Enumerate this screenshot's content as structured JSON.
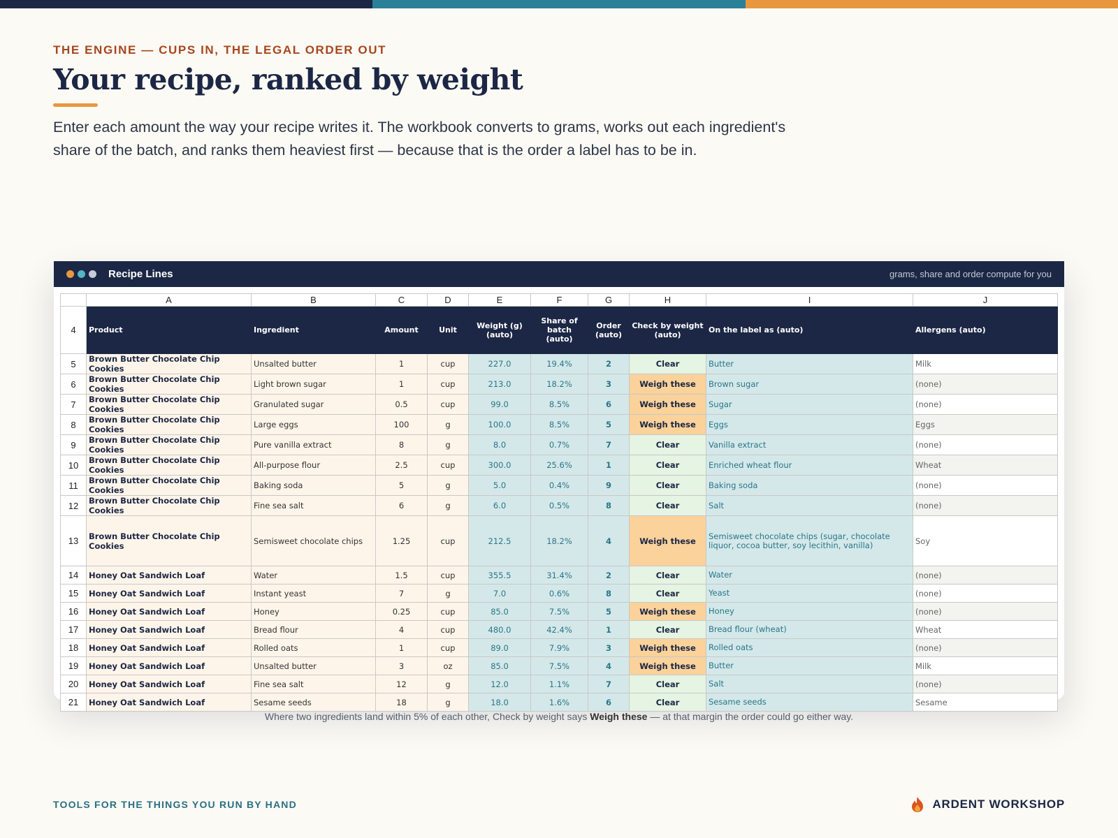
{
  "colors": {
    "navy": "#1c2745",
    "teal": "#2a7688",
    "orange": "#e9973f",
    "rust": "#a8471e",
    "background": "#fbfaf4"
  },
  "top_bar": [
    {
      "color": "#1c2745"
    },
    {
      "color": "#2a8096"
    },
    {
      "color": "#e9973f"
    }
  ],
  "header": {
    "eyebrow": "THE ENGINE — CUPS IN, THE LEGAL ORDER OUT",
    "title": "Your recipe, ranked by weight",
    "intro": "Enter each amount the way your recipe writes it. The workbook converts to grams, works out each ingredient's share of the batch, and ranks them heaviest first — because that is the order a label has to be in."
  },
  "card": {
    "dots": [
      "#e9973f",
      "#53b6c4",
      "#c6ccd8"
    ],
    "title": "Recipe Lines",
    "subtitle": "grams, share and order compute for you"
  },
  "sheet": {
    "column_letters": [
      "A",
      "B",
      "C",
      "D",
      "E",
      "F",
      "G",
      "H",
      "I",
      "J"
    ],
    "header_row_number": "4",
    "headers": [
      "Product",
      "Ingredient",
      "Amount",
      "Unit",
      "Weight (g) (auto)",
      "Share of batch (auto)",
      "Order (auto)",
      "Check by weight (auto)",
      "On the label as (auto)",
      "Allergens (auto)"
    ],
    "rows": [
      {
        "row": "5",
        "product": "Brown Butter Chocolate Chip Cookies",
        "ingredient": "Unsalted butter",
        "amount": "1",
        "unit": "cup",
        "weight": "227.0",
        "share": "19.4%",
        "order": "2",
        "check": "Clear",
        "label": "Butter",
        "allergens": "Milk"
      },
      {
        "row": "6",
        "product": "Brown Butter Chocolate Chip Cookies",
        "ingredient": "Light brown sugar",
        "amount": "1",
        "unit": "cup",
        "weight": "213.0",
        "share": "18.2%",
        "order": "3",
        "check": "Weigh these",
        "label": "Brown sugar",
        "allergens": "(none)"
      },
      {
        "row": "7",
        "product": "Brown Butter Chocolate Chip Cookies",
        "ingredient": "Granulated sugar",
        "amount": "0.5",
        "unit": "cup",
        "weight": "99.0",
        "share": "8.5%",
        "order": "6",
        "check": "Weigh these",
        "label": "Sugar",
        "allergens": "(none)"
      },
      {
        "row": "8",
        "product": "Brown Butter Chocolate Chip Cookies",
        "ingredient": "Large eggs",
        "amount": "100",
        "unit": "g",
        "weight": "100.0",
        "share": "8.5%",
        "order": "5",
        "check": "Weigh these",
        "label": "Eggs",
        "allergens": "Eggs"
      },
      {
        "row": "9",
        "product": "Brown Butter Chocolate Chip Cookies",
        "ingredient": "Pure vanilla extract",
        "amount": "8",
        "unit": "g",
        "weight": "8.0",
        "share": "0.7%",
        "order": "7",
        "check": "Clear",
        "label": "Vanilla extract",
        "allergens": "(none)"
      },
      {
        "row": "10",
        "product": "Brown Butter Chocolate Chip Cookies",
        "ingredient": "All-purpose flour",
        "amount": "2.5",
        "unit": "cup",
        "weight": "300.0",
        "share": "25.6%",
        "order": "1",
        "check": "Clear",
        "label": "Enriched wheat flour",
        "allergens": "Wheat"
      },
      {
        "row": "11",
        "product": "Brown Butter Chocolate Chip Cookies",
        "ingredient": "Baking soda",
        "amount": "5",
        "unit": "g",
        "weight": "5.0",
        "share": "0.4%",
        "order": "9",
        "check": "Clear",
        "label": "Baking soda",
        "allergens": "(none)"
      },
      {
        "row": "12",
        "product": "Brown Butter Chocolate Chip Cookies",
        "ingredient": "Fine sea salt",
        "amount": "6",
        "unit": "g",
        "weight": "6.0",
        "share": "0.5%",
        "order": "8",
        "check": "Clear",
        "label": "Salt",
        "allergens": "(none)"
      },
      {
        "row": "13",
        "product": "Brown Butter Chocolate Chip Cookies",
        "ingredient": "Semisweet chocolate chips",
        "amount": "1.25",
        "unit": "cup",
        "weight": "212.5",
        "share": "18.2%",
        "order": "4",
        "check": "Weigh these",
        "label": "Semisweet chocolate chips (sugar, chocolate liquor, cocoa butter, soy lecithin, vanilla)",
        "allergens": "Soy"
      },
      {
        "row": "14",
        "product": "Honey Oat Sandwich Loaf",
        "ingredient": "Water",
        "amount": "1.5",
        "unit": "cup",
        "weight": "355.5",
        "share": "31.4%",
        "order": "2",
        "check": "Clear",
        "label": "Water",
        "allergens": "(none)"
      },
      {
        "row": "15",
        "product": "Honey Oat Sandwich Loaf",
        "ingredient": "Instant yeast",
        "amount": "7",
        "unit": "g",
        "weight": "7.0",
        "share": "0.6%",
        "order": "8",
        "check": "Clear",
        "label": "Yeast",
        "allergens": "(none)"
      },
      {
        "row": "16",
        "product": "Honey Oat Sandwich Loaf",
        "ingredient": "Honey",
        "amount": "0.25",
        "unit": "cup",
        "weight": "85.0",
        "share": "7.5%",
        "order": "5",
        "check": "Weigh these",
        "label": "Honey",
        "allergens": "(none)"
      },
      {
        "row": "17",
        "product": "Honey Oat Sandwich Loaf",
        "ingredient": "Bread flour",
        "amount": "4",
        "unit": "cup",
        "weight": "480.0",
        "share": "42.4%",
        "order": "1",
        "check": "Clear",
        "label": "Bread flour (wheat)",
        "allergens": "Wheat"
      },
      {
        "row": "18",
        "product": "Honey Oat Sandwich Loaf",
        "ingredient": "Rolled oats",
        "amount": "1",
        "unit": "cup",
        "weight": "89.0",
        "share": "7.9%",
        "order": "3",
        "check": "Weigh these",
        "label": "Rolled oats",
        "allergens": "(none)"
      },
      {
        "row": "19",
        "product": "Honey Oat Sandwich Loaf",
        "ingredient": "Unsalted butter",
        "amount": "3",
        "unit": "oz",
        "weight": "85.0",
        "share": "7.5%",
        "order": "4",
        "check": "Weigh these",
        "label": "Butter",
        "allergens": "Milk"
      },
      {
        "row": "20",
        "product": "Honey Oat Sandwich Loaf",
        "ingredient": "Fine sea salt",
        "amount": "12",
        "unit": "g",
        "weight": "12.0",
        "share": "1.1%",
        "order": "7",
        "check": "Clear",
        "label": "Salt",
        "allergens": "(none)"
      },
      {
        "row": "21",
        "product": "Honey Oat Sandwich Loaf",
        "ingredient": "Sesame seeds",
        "amount": "18",
        "unit": "g",
        "weight": "18.0",
        "share": "1.6%",
        "order": "6",
        "check": "Clear",
        "label": "Sesame seeds",
        "allergens": "Sesame"
      }
    ]
  },
  "note": {
    "before": "Where two ingredients land within 5% of each other, Check by weight says ",
    "emphasis": "Weigh these",
    "after": " — at that margin the order could go either way."
  },
  "footer": {
    "tagline": "TOOLS FOR THE THINGS YOU RUN BY HAND",
    "brand": "ARDENT WORKSHOP",
    "brand_icon": "flame-icon"
  }
}
